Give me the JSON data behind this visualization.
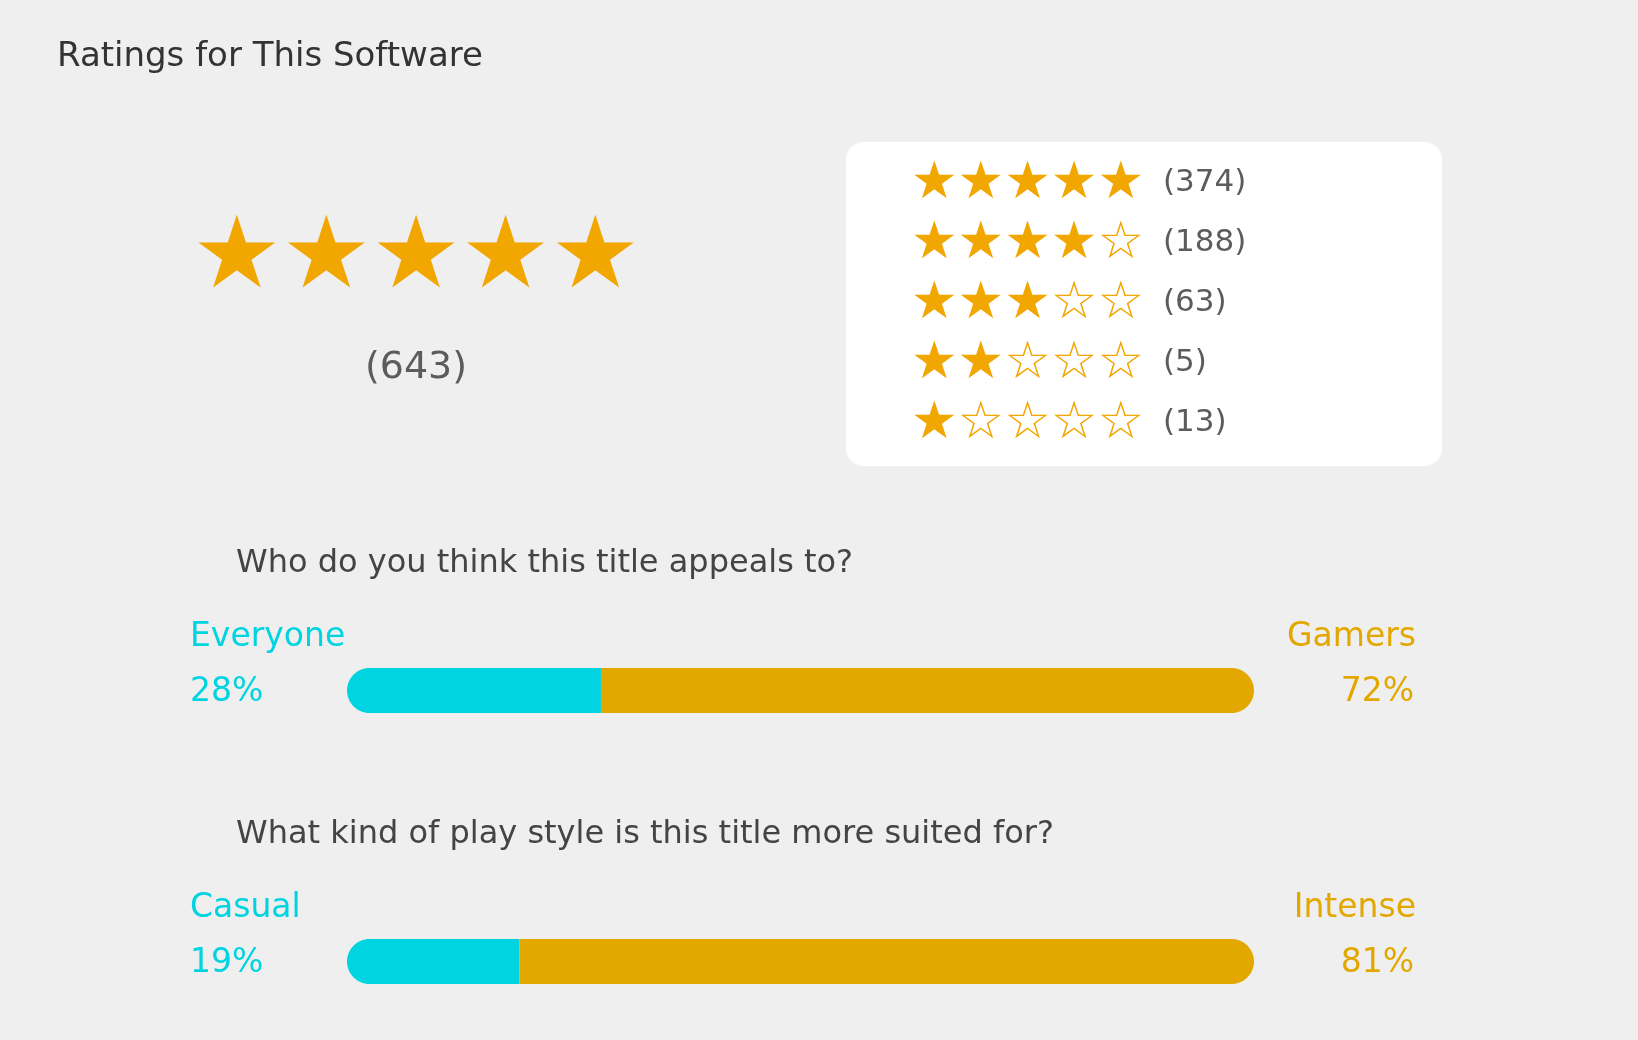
{
  "chart_data": [
    {
      "type": "other",
      "title": "Ratings for This Software",
      "annotations": [
        "★★★★★",
        "(643)"
      ],
      "categories": [
        "★★★★★",
        "★★★★☆",
        "★★★☆☆",
        "★★☆☆☆",
        "★☆☆☆☆"
      ],
      "value_labels": [
        "(374)",
        "(188)",
        "(63)",
        "(5)",
        "(13)"
      ]
    },
    {
      "type": "bar",
      "orientation": "horizontal",
      "stacked": true,
      "title": "Who do you think this title appeals to?",
      "categories": [
        null
      ],
      "xlim": [
        0,
        100
      ],
      "tick_labels": false,
      "series": [
        {
          "name": "Everyone",
          "color": "#00d4e0",
          "values": [
            28
          ],
          "value_labels": [
            "28%"
          ]
        },
        {
          "name": "Gamers",
          "color": "#e3a800",
          "values": [
            72
          ],
          "value_labels": [
            "72%"
          ]
        }
      ]
    },
    {
      "type": "bar",
      "orientation": "horizontal",
      "stacked": true,
      "title": "What kind of play style is this title more suited for?",
      "categories": [
        null
      ],
      "xlim": [
        0,
        100
      ],
      "tick_labels": false,
      "series": [
        {
          "name": "Casual",
          "color": "#00d4e0",
          "values": [
            19
          ],
          "value_labels": [
            "19%"
          ]
        },
        {
          "name": "Intense",
          "color": "#e3a800",
          "values": [
            81
          ],
          "value_labels": [
            "81%"
          ]
        }
      ]
    }
  ]
}
